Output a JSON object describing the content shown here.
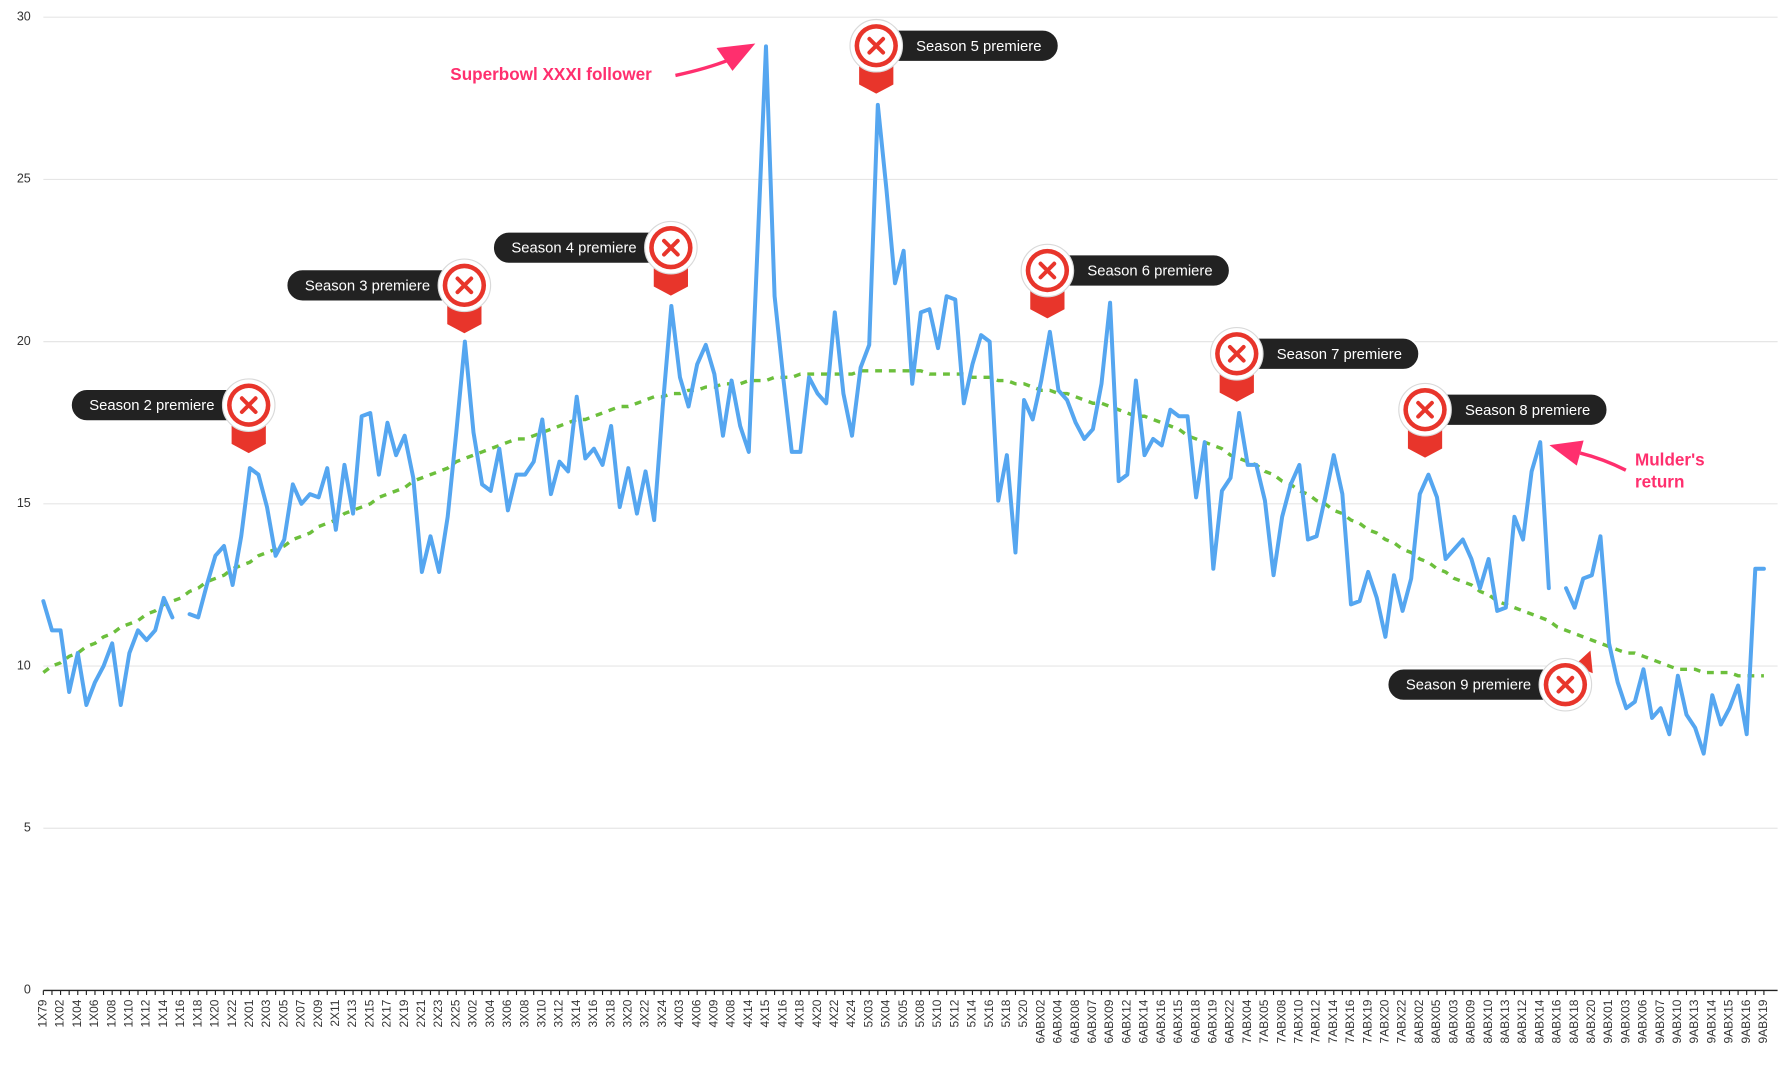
{
  "chart_data": {
    "type": "line",
    "categories": [
      "1X79",
      null,
      "1X02",
      null,
      "1X04",
      null,
      "1X06",
      null,
      "1X08",
      null,
      "1X10",
      null,
      "1X12",
      null,
      "1X14",
      null,
      "1X16",
      null,
      "1X18",
      null,
      "1X20",
      null,
      "1X22",
      null,
      "2X01",
      null,
      "2X03",
      null,
      "2X05",
      null,
      "2X07",
      null,
      "2X09",
      null,
      "2X11",
      null,
      "2X13",
      null,
      "2X15",
      null,
      "2X17",
      null,
      "2X19",
      null,
      "2X21",
      null,
      "2X23",
      null,
      "2X25",
      null,
      "3X02",
      null,
      "3X04",
      null,
      "3X06",
      null,
      "3X08",
      null,
      "3X10",
      null,
      "3X12",
      null,
      "3X14",
      null,
      "3X16",
      null,
      "3X18",
      null,
      "3X20",
      null,
      "3X22",
      null,
      "3X24",
      null,
      "4X03",
      null,
      "4X06",
      null,
      "4X09",
      null,
      "4X08",
      null,
      "4X14",
      null,
      "4X15",
      null,
      "4X16",
      null,
      "4X18",
      null,
      "4X20",
      null,
      "4X22",
      null,
      "4X24",
      null,
      "5X03",
      null,
      "5X04",
      null,
      "5X05",
      null,
      "5X08",
      null,
      "5X10",
      null,
      "5X12",
      null,
      "5X14",
      null,
      "5X16",
      null,
      "5X18",
      null,
      "5X20",
      null,
      "6ABX02",
      null,
      "6ABX04",
      null,
      "6ABX08",
      null,
      "6ABX07",
      null,
      "6ABX09",
      null,
      "6ABX12",
      null,
      "6ABX14",
      null,
      "6ABX16",
      null,
      "6ABX15",
      null,
      "6ABX18",
      null,
      "6ABX19",
      null,
      "6ABX22",
      null,
      "7ABX04",
      null,
      "7ABX05",
      null,
      "7ABX08",
      null,
      "7ABX10",
      null,
      "7ABX12",
      null,
      "7ABX14",
      null,
      "7ABX16",
      null,
      "7ABX19",
      null,
      "7ABX20",
      null,
      "7ABX22",
      null,
      "8ABX02",
      null,
      "8ABX05",
      null,
      "8ABX03",
      null,
      "8ABX09",
      null,
      "8ABX10",
      null,
      "8ABX13",
      null,
      "8ABX12",
      null,
      "8ABX14",
      null,
      "8ABX16",
      null,
      "8ABX18",
      null,
      "8ABX20",
      null,
      "9ABX01",
      null,
      "9ABX03",
      null,
      "9ABX06",
      null,
      "9ABX07",
      null,
      "9ABX10",
      null,
      "9ABX13",
      null,
      "9ABX14",
      null,
      "9ABX15",
      null,
      "9ABX16",
      null,
      "9ABX19"
    ],
    "series": [
      {
        "color": "#55a6f0",
        "values": [
          12.0,
          11.1,
          11.1,
          9.2,
          10.4,
          8.8,
          9.5,
          10.0,
          10.7,
          8.8,
          10.4,
          11.1,
          10.8,
          11.1,
          12.1,
          11.5,
          null,
          11.6,
          11.5,
          12.5,
          13.4,
          13.7,
          12.5,
          14.0,
          16.1,
          15.9,
          14.9,
          13.4,
          13.9,
          15.6,
          15.0,
          15.3,
          15.2,
          16.1,
          14.2,
          16.2,
          14.7,
          17.7,
          17.8,
          15.9,
          17.5,
          16.5,
          17.1,
          15.8,
          12.9,
          14.0,
          12.9,
          14.6,
          17.2,
          20.0,
          17.2,
          15.6,
          15.4,
          16.7,
          14.8,
          15.9,
          15.9,
          16.3,
          17.6,
          15.3,
          16.3,
          16.0,
          18.3,
          16.4,
          16.7,
          16.2,
          17.4,
          14.9,
          16.1,
          14.7,
          16.0,
          14.5,
          18.0,
          21.1,
          18.9,
          18.0,
          19.3,
          19.9,
          19.0,
          17.1,
          18.8,
          17.4,
          16.6,
          22.8,
          29.1,
          21.4,
          18.9,
          16.6,
          16.6,
          18.9,
          18.4,
          18.1,
          20.9,
          18.4,
          17.1,
          19.2,
          19.9,
          27.3,
          24.7,
          21.8,
          22.8,
          18.7,
          20.9,
          21.0,
          19.8,
          21.4,
          21.3,
          18.1,
          19.3,
          20.2,
          20.0,
          15.1,
          16.5,
          13.5,
          18.2,
          17.6,
          18.8,
          20.3,
          18.5,
          18.2,
          17.5,
          17.0,
          17.3,
          18.7,
          21.2,
          15.7,
          15.9,
          18.8,
          16.5,
          17.0,
          16.8,
          17.9,
          17.7,
          17.7,
          15.2,
          16.9,
          13.0,
          15.4,
          15.8,
          17.8,
          16.2,
          16.2,
          15.1,
          12.8,
          14.6,
          15.6,
          16.2,
          13.9,
          14.0,
          15.2,
          16.5,
          15.3,
          11.9,
          12.0,
          12.9,
          12.1,
          10.9,
          12.8,
          11.7,
          12.7,
          15.3,
          15.9,
          15.2,
          13.3,
          13.6,
          13.9,
          13.3,
          12.4,
          13.3,
          11.7,
          11.8,
          14.6,
          13.9,
          16.0,
          16.9,
          12.4,
          null,
          12.4,
          11.8,
          12.7,
          12.8,
          14.0,
          10.7,
          9.5,
          8.7,
          8.9,
          9.9,
          8.4,
          8.7,
          7.9,
          9.7,
          8.5,
          8.1,
          7.3,
          9.1,
          8.2,
          8.7,
          9.4,
          7.9,
          13.0,
          13.0
        ]
      },
      {
        "color": "#6cbf3c",
        "dashed": true,
        "values": [
          9.8,
          10.0,
          10.1,
          10.3,
          10.4,
          10.6,
          10.7,
          10.9,
          11.0,
          11.2,
          11.3,
          11.4,
          11.6,
          11.7,
          11.9,
          12.0,
          12.1,
          12.3,
          12.4,
          12.6,
          12.7,
          12.8,
          13.0,
          13.1,
          13.2,
          13.4,
          13.5,
          13.6,
          13.7,
          13.9,
          14.0,
          14.1,
          14.3,
          14.4,
          14.5,
          14.7,
          14.8,
          14.9,
          15.0,
          15.2,
          15.3,
          15.4,
          15.5,
          15.7,
          15.8,
          15.9,
          16.0,
          16.1,
          16.3,
          16.4,
          16.5,
          16.6,
          16.7,
          16.8,
          16.9,
          17.0,
          17.0,
          17.1,
          17.2,
          17.3,
          17.4,
          17.5,
          17.6,
          17.6,
          17.7,
          17.8,
          17.9,
          18.0,
          18.0,
          18.1,
          18.2,
          18.3,
          18.3,
          18.4,
          18.4,
          18.5,
          18.5,
          18.6,
          18.6,
          18.7,
          18.7,
          18.7,
          18.8,
          18.8,
          18.8,
          18.9,
          18.9,
          18.9,
          19.0,
          19.0,
          19.0,
          19.0,
          19.0,
          19.0,
          19.0,
          19.1,
          19.1,
          19.1,
          19.1,
          19.1,
          19.1,
          19.1,
          19.1,
          19.0,
          19.0,
          19.0,
          19.0,
          19.0,
          18.9,
          18.9,
          18.9,
          18.8,
          18.8,
          18.7,
          18.7,
          18.6,
          18.5,
          18.5,
          18.4,
          18.4,
          18.3,
          18.2,
          18.1,
          18.1,
          18.0,
          17.9,
          17.8,
          17.7,
          17.7,
          17.6,
          17.5,
          17.4,
          17.3,
          17.1,
          17.0,
          16.9,
          16.8,
          16.7,
          16.5,
          16.4,
          16.3,
          16.2,
          16.0,
          15.9,
          15.7,
          15.6,
          15.4,
          15.3,
          15.1,
          15.0,
          14.8,
          14.7,
          14.5,
          14.4,
          14.2,
          14.1,
          13.9,
          13.8,
          13.6,
          13.5,
          13.3,
          13.2,
          13.0,
          12.9,
          12.7,
          12.6,
          12.5,
          12.3,
          12.2,
          12.0,
          11.9,
          11.8,
          11.7,
          11.6,
          11.5,
          11.4,
          11.2,
          11.1,
          11.0,
          10.9,
          10.8,
          10.7,
          10.6,
          10.5,
          10.4,
          10.4,
          10.3,
          10.2,
          10.1,
          10.0,
          9.9,
          9.9,
          9.9,
          9.8,
          9.8,
          9.8,
          9.8,
          9.7,
          9.7,
          9.7,
          9.7
        ]
      }
    ],
    "ylim": [
      0,
      30
    ],
    "yticks": [
      0,
      5,
      10,
      15,
      20,
      25,
      30
    ],
    "grid": true,
    "premieres": [
      "Season 2 premiere",
      "Season 3 premiere",
      "Season 4 premiere",
      "Season 5 premiere",
      "Season 6 premiere",
      "Season 7 premiere",
      "Season 8 premiere",
      "Season 9 premiere"
    ],
    "annotations": [
      "Superbowl XXXI follower",
      "Mulder's return"
    ]
  }
}
